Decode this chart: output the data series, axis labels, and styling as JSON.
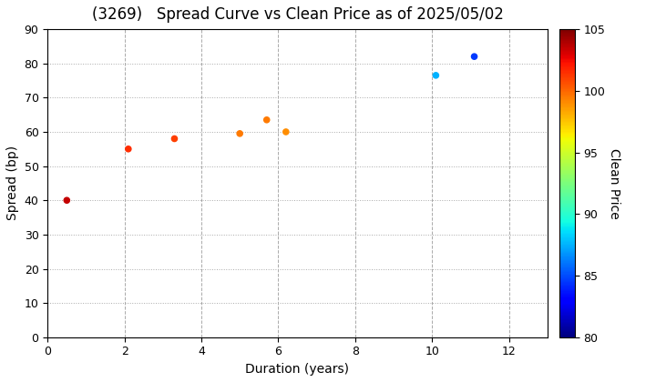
{
  "title": "(3269)   Spread Curve vs Clean Price as of 2025/05/02",
  "xlabel": "Duration (years)",
  "ylabel": "Spread (bp)",
  "colorbar_label": "Clean Price",
  "xlim": [
    0,
    13
  ],
  "ylim": [
    0,
    90
  ],
  "xticks": [
    0,
    2,
    4,
    6,
    8,
    10,
    12
  ],
  "yticks": [
    0,
    10,
    20,
    30,
    40,
    50,
    60,
    70,
    80,
    90
  ],
  "colorbar_min": 80,
  "colorbar_max": 105,
  "points": [
    {
      "duration": 0.5,
      "spread": 40.0,
      "price": 103.5
    },
    {
      "duration": 2.1,
      "spread": 55.0,
      "price": 101.5
    },
    {
      "duration": 3.3,
      "spread": 58.0,
      "price": 101.0
    },
    {
      "duration": 5.0,
      "spread": 59.5,
      "price": 99.5
    },
    {
      "duration": 5.7,
      "spread": 63.5,
      "price": 99.5
    },
    {
      "duration": 6.2,
      "spread": 60.0,
      "price": 99.0
    },
    {
      "duration": 10.1,
      "spread": 76.5,
      "price": 87.5
    },
    {
      "duration": 11.1,
      "spread": 82.0,
      "price": 84.5
    }
  ],
  "background_color": "#ffffff",
  "title_fontsize": 12,
  "axis_fontsize": 10,
  "tick_fontsize": 9,
  "marker_size": 20,
  "colorbar_tick_fontsize": 9
}
